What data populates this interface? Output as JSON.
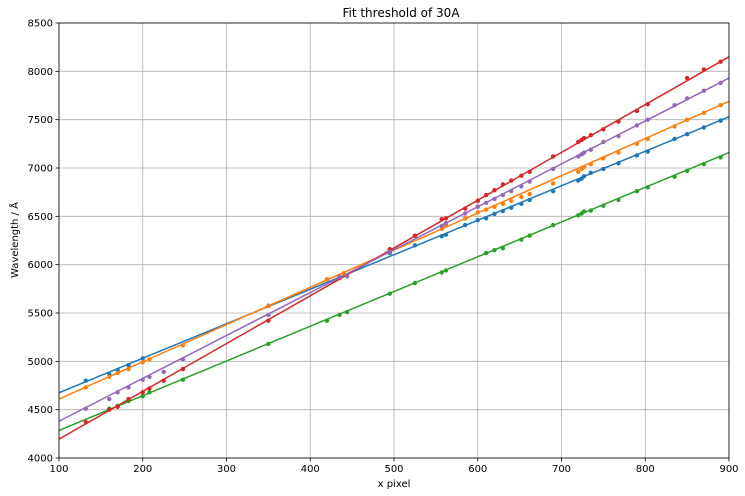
{
  "chart_data": {
    "type": "scatter",
    "title": "Fit threshold of 30A",
    "xlabel": "x pixel",
    "ylabel": "Wavelength / Å",
    "xlim": [
      100,
      900
    ],
    "ylim": [
      4000,
      8500
    ],
    "xticks": [
      100,
      200,
      300,
      400,
      500,
      600,
      700,
      800,
      900
    ],
    "yticks": [
      4000,
      4500,
      5000,
      5500,
      6000,
      6500,
      7000,
      7500,
      8000,
      8500
    ],
    "grid": true,
    "series": [
      {
        "color": "#1f77b4",
        "fit": [
          [
            100,
            4675
          ],
          [
            900,
            7530
          ]
        ],
        "points": [
          [
            132,
            4800
          ],
          [
            160,
            4865
          ],
          [
            170,
            4910
          ],
          [
            183,
            4960
          ],
          [
            200,
            5030
          ],
          [
            350,
            5575
          ],
          [
            435,
            5870
          ],
          [
            495,
            6120
          ],
          [
            525,
            6200
          ],
          [
            557,
            6295
          ],
          [
            562,
            6310
          ],
          [
            585,
            6410
          ],
          [
            600,
            6460
          ],
          [
            610,
            6480
          ],
          [
            620,
            6525
          ],
          [
            630,
            6555
          ],
          [
            640,
            6590
          ],
          [
            652,
            6630
          ],
          [
            662,
            6670
          ],
          [
            690,
            6760
          ],
          [
            720,
            6870
          ],
          [
            724,
            6890
          ],
          [
            727,
            6915
          ],
          [
            735,
            6950
          ],
          [
            750,
            6990
          ],
          [
            768,
            7050
          ],
          [
            790,
            7130
          ],
          [
            803,
            7170
          ],
          [
            835,
            7300
          ],
          [
            850,
            7350
          ],
          [
            870,
            7420
          ],
          [
            890,
            7490
          ]
        ]
      },
      {
        "color": "#ff7f0e",
        "fit": [
          [
            100,
            4610
          ],
          [
            900,
            7690
          ]
        ],
        "points": [
          [
            132,
            4730
          ],
          [
            160,
            4840
          ],
          [
            170,
            4880
          ],
          [
            183,
            4920
          ],
          [
            200,
            4990
          ],
          [
            208,
            5020
          ],
          [
            248,
            5165
          ],
          [
            350,
            5570
          ],
          [
            420,
            5850
          ],
          [
            440,
            5910
          ],
          [
            495,
            6140
          ],
          [
            557,
            6370
          ],
          [
            562,
            6410
          ],
          [
            585,
            6480
          ],
          [
            600,
            6540
          ],
          [
            610,
            6570
          ],
          [
            620,
            6600
          ],
          [
            630,
            6630
          ],
          [
            640,
            6660
          ],
          [
            652,
            6700
          ],
          [
            662,
            6730
          ],
          [
            690,
            6840
          ],
          [
            720,
            6960
          ],
          [
            724,
            6990
          ],
          [
            727,
            7010
          ],
          [
            735,
            7040
          ],
          [
            750,
            7100
          ],
          [
            768,
            7160
          ],
          [
            790,
            7250
          ],
          [
            803,
            7300
          ],
          [
            835,
            7430
          ],
          [
            850,
            7500
          ],
          [
            870,
            7570
          ],
          [
            890,
            7650
          ]
        ]
      },
      {
        "color": "#2ca02c",
        "fit": [
          [
            100,
            4285
          ],
          [
            900,
            7160
          ]
        ],
        "points": [
          [
            160,
            4510
          ],
          [
            170,
            4540
          ],
          [
            183,
            4590
          ],
          [
            200,
            4640
          ],
          [
            208,
            4680
          ],
          [
            248,
            4810
          ],
          [
            350,
            5180
          ],
          [
            420,
            5420
          ],
          [
            435,
            5480
          ],
          [
            444,
            5510
          ],
          [
            495,
            5700
          ],
          [
            525,
            5810
          ],
          [
            557,
            5920
          ],
          [
            562,
            5940
          ],
          [
            610,
            6120
          ],
          [
            620,
            6150
          ],
          [
            630,
            6170
          ],
          [
            652,
            6260
          ],
          [
            662,
            6300
          ],
          [
            690,
            6410
          ],
          [
            720,
            6510
          ],
          [
            724,
            6530
          ],
          [
            727,
            6550
          ],
          [
            735,
            6560
          ],
          [
            750,
            6610
          ],
          [
            768,
            6670
          ],
          [
            790,
            6760
          ],
          [
            803,
            6800
          ],
          [
            835,
            6910
          ],
          [
            850,
            6970
          ],
          [
            870,
            7040
          ],
          [
            890,
            7110
          ]
        ]
      },
      {
        "color": "#d62728",
        "fit": [
          [
            100,
            4195
          ],
          [
            900,
            8150
          ]
        ],
        "points": [
          [
            132,
            4370
          ],
          [
            160,
            4500
          ],
          [
            170,
            4530
          ],
          [
            183,
            4610
          ],
          [
            200,
            4680
          ],
          [
            208,
            4720
          ],
          [
            225,
            4800
          ],
          [
            248,
            4920
          ],
          [
            350,
            5420
          ],
          [
            435,
            5860
          ],
          [
            495,
            6160
          ],
          [
            525,
            6300
          ],
          [
            557,
            6470
          ],
          [
            562,
            6480
          ],
          [
            585,
            6580
          ],
          [
            600,
            6660
          ],
          [
            610,
            6720
          ],
          [
            620,
            6770
          ],
          [
            630,
            6830
          ],
          [
            640,
            6870
          ],
          [
            652,
            6920
          ],
          [
            662,
            6960
          ],
          [
            690,
            7120
          ],
          [
            720,
            7270
          ],
          [
            724,
            7290
          ],
          [
            727,
            7310
          ],
          [
            735,
            7340
          ],
          [
            750,
            7400
          ],
          [
            768,
            7480
          ],
          [
            790,
            7590
          ],
          [
            803,
            7660
          ],
          [
            850,
            7930
          ],
          [
            870,
            8020
          ],
          [
            890,
            8100
          ]
        ]
      },
      {
        "color": "#9467bd",
        "fit": [
          [
            100,
            4380
          ],
          [
            900,
            7930
          ]
        ],
        "points": [
          [
            132,
            4510
          ],
          [
            160,
            4610
          ],
          [
            170,
            4680
          ],
          [
            183,
            4730
          ],
          [
            200,
            4810
          ],
          [
            208,
            4840
          ],
          [
            225,
            4890
          ],
          [
            248,
            5020
          ],
          [
            350,
            5480
          ],
          [
            435,
            5870
          ],
          [
            444,
            5880
          ],
          [
            495,
            6130
          ],
          [
            557,
            6400
          ],
          [
            562,
            6430
          ],
          [
            585,
            6530
          ],
          [
            600,
            6600
          ],
          [
            610,
            6640
          ],
          [
            620,
            6680
          ],
          [
            630,
            6720
          ],
          [
            640,
            6760
          ],
          [
            652,
            6810
          ],
          [
            662,
            6860
          ],
          [
            690,
            6990
          ],
          [
            720,
            7120
          ],
          [
            724,
            7140
          ],
          [
            727,
            7160
          ],
          [
            735,
            7190
          ],
          [
            750,
            7270
          ],
          [
            768,
            7330
          ],
          [
            790,
            7440
          ],
          [
            803,
            7500
          ],
          [
            835,
            7650
          ],
          [
            850,
            7720
          ],
          [
            870,
            7800
          ],
          [
            890,
            7880
          ]
        ]
      }
    ]
  }
}
